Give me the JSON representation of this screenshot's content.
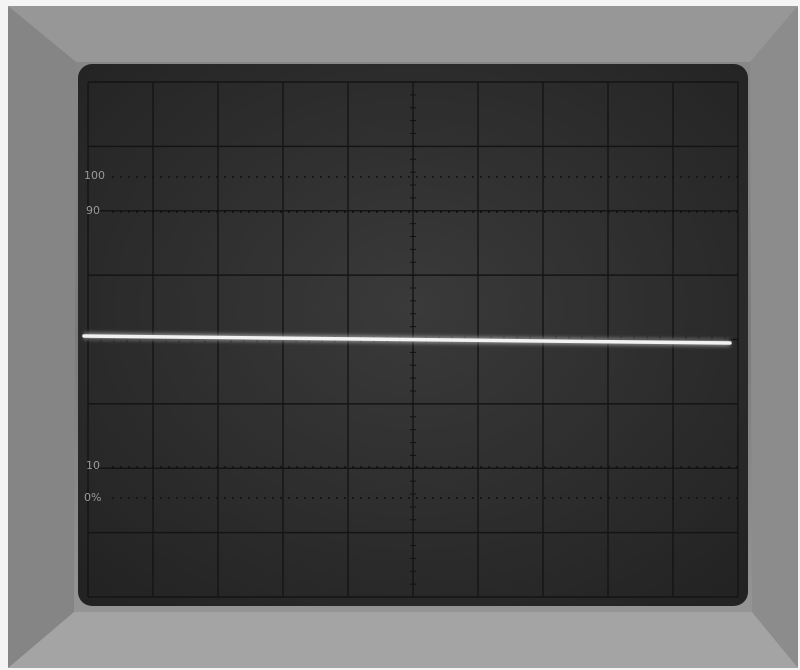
{
  "graticule_labels": [
    "100",
    "90",
    "10",
    "0%"
  ]
}
